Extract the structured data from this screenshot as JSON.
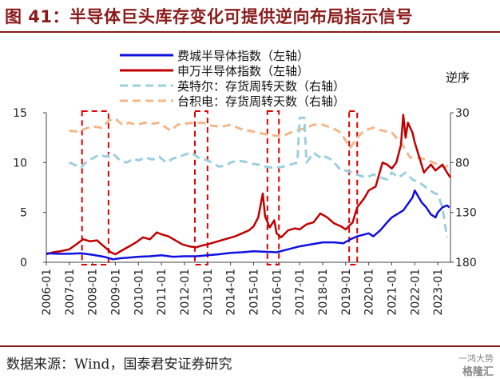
{
  "header": {
    "title": "图 41：半导体巨头库存变化可提供逆向布局指示信号"
  },
  "footer": {
    "source": "数据来源：Wind，国泰君安证券研究",
    "watermark_top": "一鸿大势",
    "watermark_bottom": "格隆汇"
  },
  "chart_data": {
    "type": "line",
    "left_axis": {
      "ylim": [
        0,
        15
      ],
      "ticks": [
        "0",
        "5",
        "10",
        "15"
      ]
    },
    "right_axis": {
      "label": "逆序",
      "ylim": [
        30,
        180
      ],
      "inverted": true,
      "ticks": [
        "30",
        "80",
        "130",
        "180"
      ]
    },
    "x_ticks": [
      "2006-01",
      "2007-01",
      "2008-01",
      "2009-01",
      "2010-01",
      "2011-01",
      "2012-01",
      "2013-01",
      "2014-01",
      "2015-01",
      "2016-01",
      "2017-01",
      "2018-01",
      "2019-01",
      "2020-01",
      "2021-01",
      "2022-01",
      "2023-01"
    ],
    "x_range": [
      2006.0,
      2023.55
    ],
    "series": [
      {
        "name": "费城半导体指数（左轴）",
        "axis": "left",
        "color": "#1010E0",
        "style": "solid",
        "points": [
          [
            2006.0,
            0.9
          ],
          [
            2006.5,
            0.85
          ],
          [
            2007.0,
            0.85
          ],
          [
            2007.5,
            0.9
          ],
          [
            2008.0,
            0.75
          ],
          [
            2008.5,
            0.55
          ],
          [
            2008.9,
            0.3
          ],
          [
            2009.2,
            0.4
          ],
          [
            2009.5,
            0.45
          ],
          [
            2010.0,
            0.55
          ],
          [
            2010.5,
            0.6
          ],
          [
            2011.0,
            0.7
          ],
          [
            2011.5,
            0.55
          ],
          [
            2012.0,
            0.6
          ],
          [
            2012.5,
            0.6
          ],
          [
            2013.0,
            0.7
          ],
          [
            2013.5,
            0.8
          ],
          [
            2014.0,
            0.95
          ],
          [
            2014.5,
            1.0
          ],
          [
            2015.0,
            1.1
          ],
          [
            2015.5,
            1.05
          ],
          [
            2016.0,
            1.0
          ],
          [
            2016.5,
            1.3
          ],
          [
            2017.0,
            1.6
          ],
          [
            2017.5,
            1.8
          ],
          [
            2018.0,
            2.0
          ],
          [
            2018.5,
            2.0
          ],
          [
            2018.9,
            1.9
          ],
          [
            2019.2,
            2.3
          ],
          [
            2019.5,
            2.6
          ],
          [
            2020.0,
            2.9
          ],
          [
            2020.2,
            2.6
          ],
          [
            2020.5,
            3.2
          ],
          [
            2020.8,
            4.0
          ],
          [
            2021.0,
            4.5
          ],
          [
            2021.5,
            5.2
          ],
          [
            2021.9,
            6.5
          ],
          [
            2022.0,
            7.2
          ],
          [
            2022.3,
            6.0
          ],
          [
            2022.5,
            5.5
          ],
          [
            2022.7,
            4.8
          ],
          [
            2022.9,
            4.5
          ],
          [
            2023.0,
            5.0
          ],
          [
            2023.2,
            5.5
          ],
          [
            2023.4,
            5.7
          ],
          [
            2023.5,
            5.5
          ]
        ]
      },
      {
        "name": "申万半导体指数（左轴）",
        "axis": "left",
        "color": "#C00000",
        "style": "solid",
        "points": [
          [
            2006.0,
            0.8
          ],
          [
            2006.3,
            1.0
          ],
          [
            2006.6,
            1.1
          ],
          [
            2007.0,
            1.3
          ],
          [
            2007.3,
            1.8
          ],
          [
            2007.6,
            2.3
          ],
          [
            2007.9,
            2.1
          ],
          [
            2008.2,
            2.2
          ],
          [
            2008.5,
            1.6
          ],
          [
            2008.8,
            1.0
          ],
          [
            2009.0,
            0.8
          ],
          [
            2009.3,
            1.2
          ],
          [
            2009.6,
            1.6
          ],
          [
            2009.9,
            2.0
          ],
          [
            2010.2,
            2.5
          ],
          [
            2010.5,
            2.3
          ],
          [
            2010.8,
            3.0
          ],
          [
            2011.0,
            2.8
          ],
          [
            2011.3,
            2.6
          ],
          [
            2011.6,
            2.2
          ],
          [
            2011.9,
            1.8
          ],
          [
            2012.2,
            1.6
          ],
          [
            2012.5,
            1.5
          ],
          [
            2012.8,
            1.7
          ],
          [
            2013.0,
            1.8
          ],
          [
            2013.3,
            2.0
          ],
          [
            2013.6,
            2.2
          ],
          [
            2013.9,
            2.4
          ],
          [
            2014.2,
            2.6
          ],
          [
            2014.5,
            2.9
          ],
          [
            2014.8,
            3.2
          ],
          [
            2015.0,
            3.6
          ],
          [
            2015.2,
            4.5
          ],
          [
            2015.4,
            6.9
          ],
          [
            2015.5,
            4.6
          ],
          [
            2015.7,
            3.5
          ],
          [
            2015.9,
            4.2
          ],
          [
            2016.0,
            2.9
          ],
          [
            2016.2,
            2.5
          ],
          [
            2016.5,
            3.2
          ],
          [
            2016.8,
            3.4
          ],
          [
            2017.0,
            3.3
          ],
          [
            2017.3,
            3.8
          ],
          [
            2017.6,
            4.0
          ],
          [
            2017.9,
            4.9
          ],
          [
            2018.2,
            4.5
          ],
          [
            2018.5,
            3.9
          ],
          [
            2018.8,
            3.6
          ],
          [
            2019.0,
            3.3
          ],
          [
            2019.3,
            4.0
          ],
          [
            2019.5,
            5.5
          ],
          [
            2019.8,
            6.4
          ],
          [
            2020.0,
            7.2
          ],
          [
            2020.3,
            7.6
          ],
          [
            2020.6,
            10.0
          ],
          [
            2020.8,
            9.8
          ],
          [
            2021.0,
            9.4
          ],
          [
            2021.2,
            10.0
          ],
          [
            2021.4,
            11.8
          ],
          [
            2021.5,
            14.8
          ],
          [
            2021.6,
            12.5
          ],
          [
            2021.7,
            14.0
          ],
          [
            2021.9,
            13.0
          ],
          [
            2022.0,
            12.0
          ],
          [
            2022.2,
            10.5
          ],
          [
            2022.4,
            9.0
          ],
          [
            2022.5,
            9.3
          ],
          [
            2022.7,
            9.8
          ],
          [
            2022.9,
            9.2
          ],
          [
            2023.0,
            9.4
          ],
          [
            2023.2,
            9.8
          ],
          [
            2023.4,
            9.0
          ],
          [
            2023.55,
            8.5
          ]
        ]
      },
      {
        "name": "英特尔：存货周转天数（右轴）",
        "axis": "right",
        "color": "#9DCFDF",
        "style": "dashed",
        "points": [
          [
            2007.0,
            80
          ],
          [
            2007.3,
            83
          ],
          [
            2007.5,
            85
          ],
          [
            2007.8,
            78
          ],
          [
            2008.0,
            76
          ],
          [
            2008.3,
            72
          ],
          [
            2008.6,
            74
          ],
          [
            2008.9,
            71
          ],
          [
            2009.2,
            78
          ],
          [
            2009.5,
            80
          ],
          [
            2009.8,
            76
          ],
          [
            2010.0,
            78
          ],
          [
            2010.3,
            75
          ],
          [
            2010.6,
            77
          ],
          [
            2010.9,
            74
          ],
          [
            2011.2,
            80
          ],
          [
            2011.5,
            76
          ],
          [
            2011.8,
            74
          ],
          [
            2012.0,
            72
          ],
          [
            2012.3,
            70
          ],
          [
            2012.6,
            75
          ],
          [
            2012.9,
            77
          ],
          [
            2013.2,
            80
          ],
          [
            2013.5,
            84
          ],
          [
            2013.8,
            83
          ],
          [
            2014.0,
            80
          ],
          [
            2014.3,
            78
          ],
          [
            2014.6,
            79
          ],
          [
            2014.9,
            81
          ],
          [
            2015.2,
            82
          ],
          [
            2015.5,
            84
          ],
          [
            2015.8,
            85
          ],
          [
            2016.0,
            85
          ],
          [
            2016.3,
            84
          ],
          [
            2016.6,
            82
          ],
          [
            2016.9,
            80
          ],
          [
            2017.0,
            35
          ],
          [
            2017.2,
            35
          ],
          [
            2017.3,
            80
          ],
          [
            2017.6,
            70
          ],
          [
            2017.9,
            75
          ],
          [
            2018.0,
            73
          ],
          [
            2018.3,
            76
          ],
          [
            2018.5,
            80
          ],
          [
            2018.8,
            88
          ],
          [
            2019.0,
            88
          ],
          [
            2019.3,
            90
          ],
          [
            2019.6,
            93
          ],
          [
            2019.9,
            95
          ],
          [
            2020.2,
            92
          ],
          [
            2020.5,
            95
          ],
          [
            2020.8,
            97
          ],
          [
            2021.0,
            90
          ],
          [
            2021.3,
            95
          ],
          [
            2021.6,
            90
          ],
          [
            2021.9,
            97
          ],
          [
            2022.2,
            100
          ],
          [
            2022.5,
            105
          ],
          [
            2022.8,
            110
          ],
          [
            2023.0,
            112
          ],
          [
            2023.2,
            125
          ],
          [
            2023.4,
            155
          ]
        ]
      },
      {
        "name": "台积电：存货周转天数（右轴）",
        "axis": "right",
        "color": "#F2B88A",
        "style": "dashed",
        "points": [
          [
            2007.0,
            48
          ],
          [
            2007.4,
            49
          ],
          [
            2007.8,
            45
          ],
          [
            2008.1,
            44
          ],
          [
            2008.4,
            45
          ],
          [
            2008.7,
            38
          ],
          [
            2009.0,
            36
          ],
          [
            2009.3,
            42
          ],
          [
            2009.6,
            40
          ],
          [
            2009.9,
            42
          ],
          [
            2010.3,
            40
          ],
          [
            2010.6,
            41
          ],
          [
            2010.9,
            40
          ],
          [
            2011.2,
            45
          ],
          [
            2011.4,
            48
          ],
          [
            2011.7,
            42
          ],
          [
            2012.0,
            41
          ],
          [
            2012.4,
            40
          ],
          [
            2012.8,
            40
          ],
          [
            2013.2,
            43
          ],
          [
            2013.6,
            44
          ],
          [
            2014.0,
            42
          ],
          [
            2014.4,
            46
          ],
          [
            2014.8,
            48
          ],
          [
            2015.2,
            50
          ],
          [
            2015.6,
            52
          ],
          [
            2016.0,
            53
          ],
          [
            2016.4,
            52
          ],
          [
            2016.8,
            48
          ],
          [
            2017.2,
            46
          ],
          [
            2017.6,
            42
          ],
          [
            2018.0,
            42
          ],
          [
            2018.4,
            45
          ],
          [
            2018.8,
            50
          ],
          [
            2019.0,
            58
          ],
          [
            2019.2,
            65
          ],
          [
            2019.5,
            55
          ],
          [
            2019.8,
            48
          ],
          [
            2020.2,
            45
          ],
          [
            2020.6,
            48
          ],
          [
            2021.0,
            50
          ],
          [
            2021.4,
            60
          ],
          [
            2021.8,
            75
          ],
          [
            2022.2,
            75
          ],
          [
            2022.6,
            78
          ],
          [
            2023.0,
            82
          ],
          [
            2023.3,
            85
          ],
          [
            2023.5,
            82
          ]
        ]
      }
    ],
    "highlight_periods": [
      [
        2007.55,
        2008.7
      ],
      [
        2012.45,
        2013.0
      ],
      [
        2015.6,
        2016.1
      ],
      [
        2019.15,
        2019.5
      ]
    ],
    "legend_position": "top-center"
  }
}
